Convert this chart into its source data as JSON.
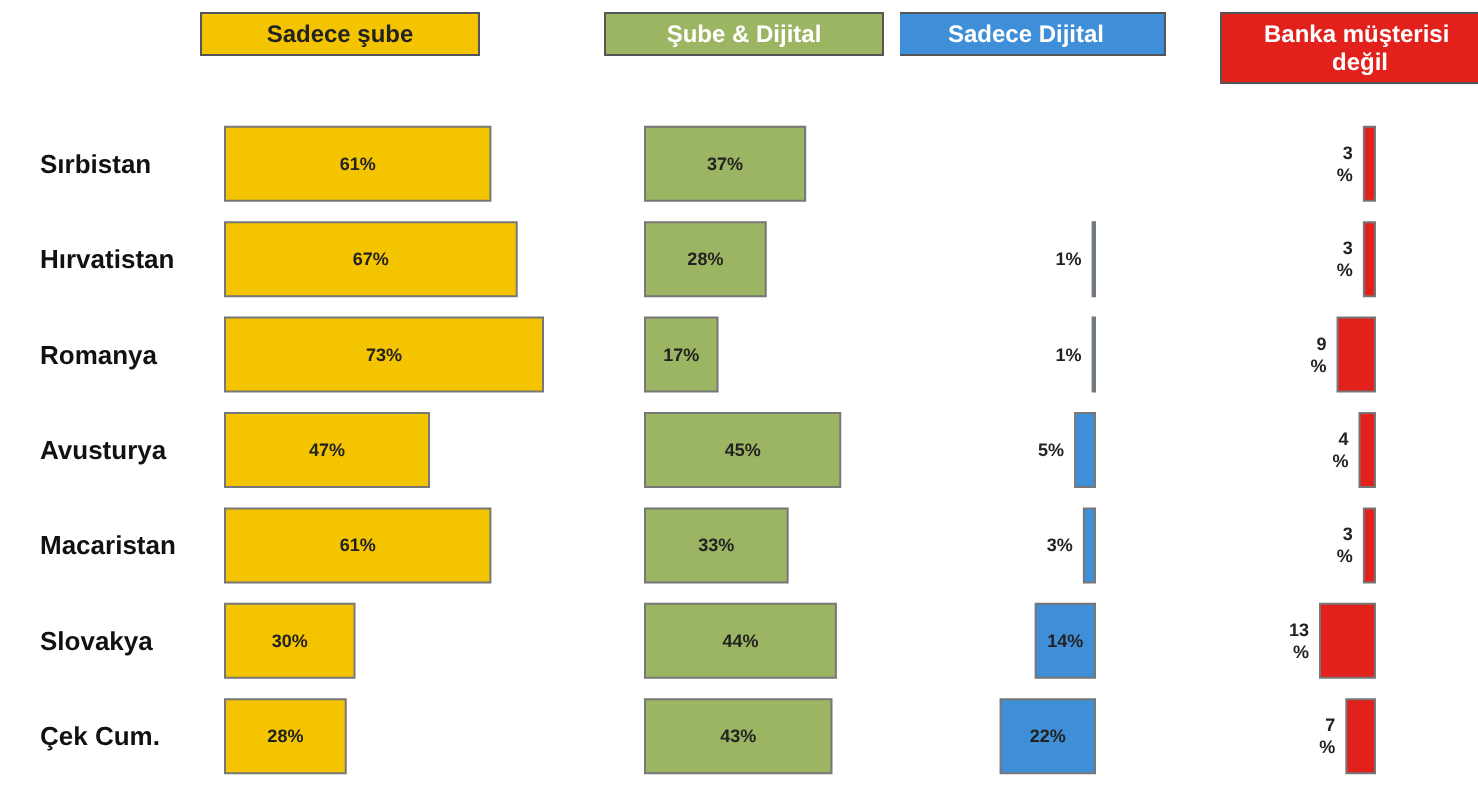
{
  "chart_data": [
    {
      "type": "bar",
      "orientation": "horizontal",
      "title": "Sadece şube",
      "categories": [
        "Sırbistan",
        "Hırvatistan",
        "Romanya",
        "Avusturya",
        "Macaristan",
        "Slovakya",
        "Çek Cum."
      ],
      "values": [
        61,
        67,
        73,
        47,
        61,
        30,
        28
      ],
      "value_labels": [
        "61%",
        "67%",
        "73%",
        "47%",
        "61%",
        "30%",
        "28%"
      ],
      "color": "#f5c400",
      "tick_labels": "y"
    },
    {
      "type": "bar",
      "orientation": "horizontal",
      "title": "Şube & Dijital",
      "categories": [
        null,
        null,
        null,
        null,
        null,
        null,
        null
      ],
      "values": [
        37,
        28,
        17,
        45,
        33,
        44,
        43
      ],
      "value_labels": [
        "37%",
        "28%",
        "17%",
        "45%",
        "33%",
        "44%",
        "43%"
      ],
      "color": "#9cb563",
      "tick_labels": false
    },
    {
      "type": "bar",
      "orientation": "horizontal",
      "title": "Sadece Dijital",
      "categories": [
        null,
        null,
        null,
        null,
        null,
        null,
        null
      ],
      "values": [
        null,
        1,
        1,
        5,
        3,
        14,
        22
      ],
      "value_labels": [
        null,
        "1%",
        "1%",
        "5%",
        "3%",
        "14%",
        "22%"
      ],
      "color": "#3f8fd8",
      "tick_labels": false
    },
    {
      "type": "bar",
      "orientation": "horizontal",
      "title": "Banka müşterisi değil",
      "categories": [
        null,
        null,
        null,
        null,
        null,
        null,
        null
      ],
      "values": [
        3,
        3,
        9,
        4,
        3,
        13,
        7
      ],
      "value_labels": [
        "3\n%",
        "3\n%",
        "9\n%",
        "4\n%",
        "3\n%",
        "13\n%",
        "7\n%"
      ],
      "color": "#e3211c",
      "tick_labels": false
    }
  ]
}
